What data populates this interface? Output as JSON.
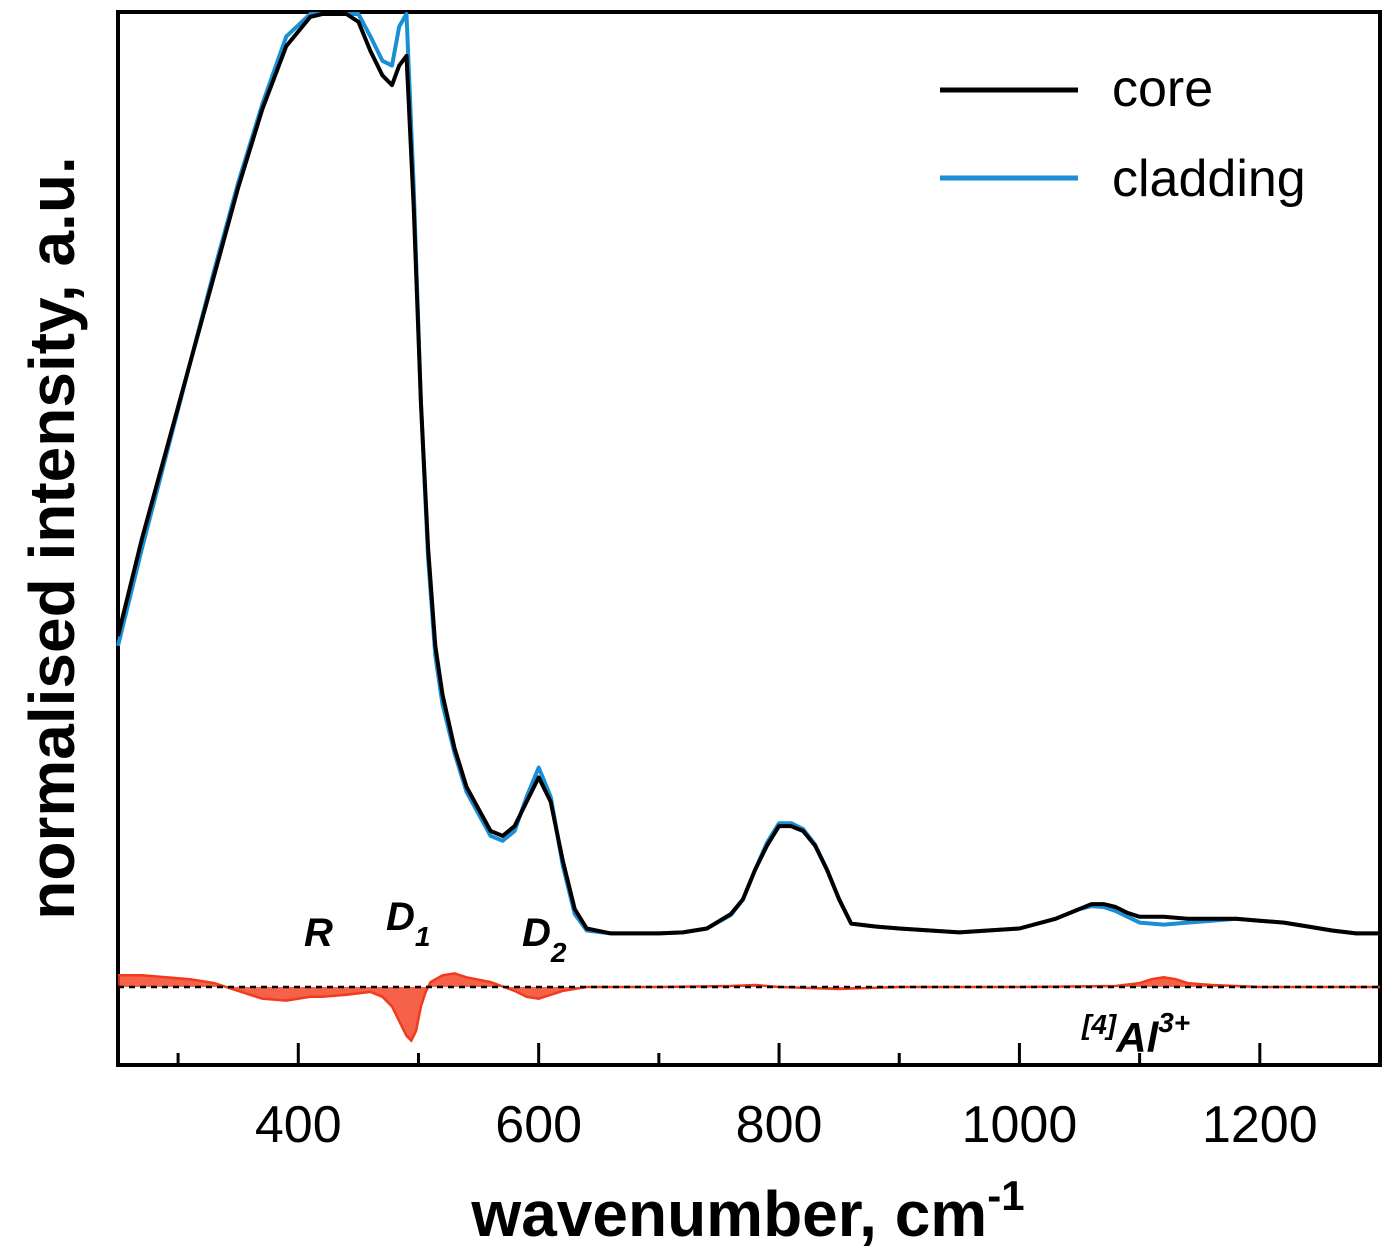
{
  "chart_data": {
    "type": "line",
    "xlabel": "wavenumber, cm",
    "xlabel_sup": "-1",
    "ylabel": "normalised intensity, a.u.",
    "xlim": [
      250,
      1300
    ],
    "ylim": [
      -0.08,
      1.0
    ],
    "x_ticks": [
      400,
      600,
      800,
      1000,
      1200
    ],
    "x_minor_ticks": [
      300,
      500,
      700,
      900,
      1100
    ],
    "legend_position": "top-right",
    "grid": false,
    "colors": {
      "core": "#000000",
      "cladding": "#1a8fd6",
      "difference": "#f23a1c"
    },
    "series": [
      {
        "name": "core",
        "x": [
          250,
          270,
          290,
          310,
          330,
          350,
          370,
          390,
          410,
          420,
          430,
          440,
          450,
          460,
          470,
          478,
          484,
          490,
          496,
          502,
          508,
          514,
          520,
          530,
          540,
          560,
          570,
          580,
          590,
          600,
          610,
          620,
          630,
          640,
          660,
          680,
          700,
          720,
          740,
          760,
          770,
          780,
          790,
          800,
          810,
          820,
          830,
          840,
          850,
          860,
          880,
          900,
          950,
          1000,
          1030,
          1050,
          1060,
          1070,
          1080,
          1090,
          1100,
          1120,
          1140,
          1160,
          1180,
          1200,
          1220,
          1240,
          1260,
          1280,
          1300
        ],
        "y": [
          0.36,
          0.46,
          0.55,
          0.64,
          0.73,
          0.82,
          0.9,
          0.965,
          0.995,
          1.005,
          1.01,
          1.005,
          0.99,
          0.96,
          0.935,
          0.925,
          0.945,
          0.955,
          0.8,
          0.6,
          0.45,
          0.35,
          0.3,
          0.245,
          0.205,
          0.16,
          0.155,
          0.165,
          0.19,
          0.215,
          0.19,
          0.13,
          0.08,
          0.06,
          0.055,
          0.055,
          0.055,
          0.056,
          0.06,
          0.075,
          0.09,
          0.12,
          0.145,
          0.165,
          0.165,
          0.16,
          0.145,
          0.12,
          0.09,
          0.065,
          0.062,
          0.06,
          0.056,
          0.06,
          0.07,
          0.08,
          0.085,
          0.085,
          0.082,
          0.076,
          0.072,
          0.072,
          0.07,
          0.07,
          0.07,
          0.068,
          0.066,
          0.062,
          0.058,
          0.055,
          0.055
        ]
      },
      {
        "name": "cladding",
        "x": [
          250,
          270,
          290,
          310,
          330,
          350,
          370,
          390,
          410,
          420,
          430,
          440,
          450,
          460,
          470,
          478,
          484,
          490,
          496,
          502,
          508,
          514,
          520,
          530,
          540,
          560,
          570,
          580,
          590,
          600,
          610,
          620,
          630,
          640,
          660,
          680,
          700,
          720,
          740,
          760,
          770,
          780,
          790,
          800,
          810,
          820,
          830,
          840,
          850,
          860,
          880,
          900,
          950,
          1000,
          1030,
          1050,
          1060,
          1070,
          1080,
          1090,
          1100,
          1120,
          1140,
          1160,
          1180,
          1200,
          1220,
          1240,
          1260,
          1280,
          1300
        ],
        "y": [
          0.35,
          0.45,
          0.545,
          0.64,
          0.735,
          0.825,
          0.905,
          0.975,
          1.01,
          1.02,
          1.025,
          1.02,
          1.005,
          0.975,
          0.95,
          0.945,
          0.985,
          1.005,
          0.82,
          0.6,
          0.44,
          0.34,
          0.29,
          0.24,
          0.2,
          0.155,
          0.15,
          0.16,
          0.195,
          0.225,
          0.195,
          0.125,
          0.075,
          0.058,
          0.055,
          0.055,
          0.055,
          0.056,
          0.06,
          0.074,
          0.09,
          0.12,
          0.148,
          0.168,
          0.168,
          0.162,
          0.146,
          0.12,
          0.09,
          0.065,
          0.062,
          0.06,
          0.056,
          0.06,
          0.07,
          0.08,
          0.083,
          0.082,
          0.078,
          0.072,
          0.066,
          0.064,
          0.066,
          0.068,
          0.07,
          0.068,
          0.066,
          0.062,
          0.058,
          0.055,
          0.055
        ]
      },
      {
        "name": "difference",
        "x": [
          250,
          270,
          290,
          310,
          330,
          350,
          370,
          390,
          410,
          420,
          440,
          460,
          470,
          478,
          484,
          490,
          494,
          498,
          502,
          506,
          510,
          520,
          530,
          540,
          560,
          580,
          590,
          600,
          610,
          620,
          640,
          700,
          760,
          780,
          800,
          850,
          900,
          1000,
          1080,
          1100,
          1110,
          1120,
          1130,
          1140,
          1160,
          1200,
          1300
        ],
        "y": [
          0.012,
          0.012,
          0.01,
          0.008,
          0.004,
          -0.004,
          -0.012,
          -0.014,
          -0.01,
          -0.01,
          -0.008,
          -0.005,
          -0.01,
          -0.02,
          -0.035,
          -0.05,
          -0.055,
          -0.045,
          -0.02,
          -0.005,
          0.005,
          0.012,
          0.014,
          0.01,
          0.005,
          -0.004,
          -0.01,
          -0.012,
          -0.008,
          -0.004,
          0.0,
          0.0,
          0.001,
          0.002,
          0.0,
          -0.002,
          0.0,
          0.0,
          0.001,
          0.004,
          0.008,
          0.01,
          0.008,
          0.004,
          0.002,
          0.0,
          0.0
        ]
      }
    ],
    "annotations": [
      {
        "id": "R",
        "text": "R",
        "sub": "",
        "sup": "",
        "x": 420,
        "y": 0.035
      },
      {
        "id": "D1",
        "text": "D",
        "sub": "1",
        "sup": "",
        "x": 490,
        "y": 0.035
      },
      {
        "id": "D2",
        "text": "D",
        "sub": "2",
        "sup": "",
        "x": 600,
        "y": 0.025
      },
      {
        "id": "Al",
        "pre": "[4]",
        "text": "Al",
        "sub": "",
        "sup": "3+",
        "x": 1120,
        "y": -0.06
      }
    ]
  }
}
